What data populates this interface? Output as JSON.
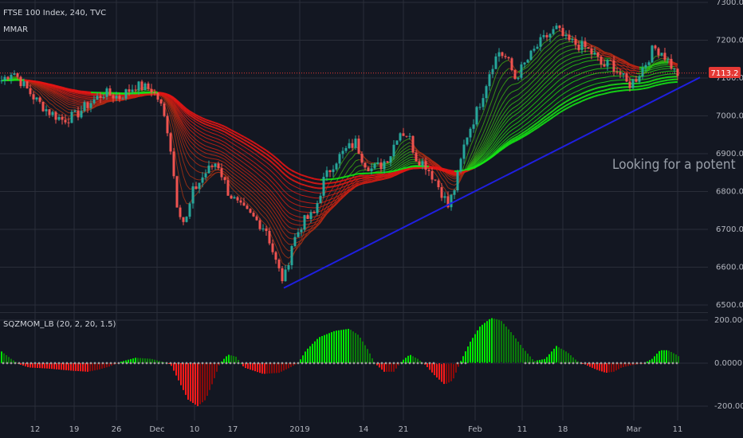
{
  "header": {
    "symbol": "FTSE 100 Index, 240, TVC",
    "indicator": "MMAR"
  },
  "annotation": {
    "text": "Looking for a potent"
  },
  "price_badge": {
    "text": "7113.2"
  },
  "osc_label": {
    "text": "SQZMOM_LB (20, 2, 20, 1.5)"
  },
  "colors": {
    "background": "#131722",
    "grid": "#2a2e39",
    "bull": "#26a69a",
    "bear": "#ef5350",
    "ribbon_red": "#e01818",
    "ribbon_green": "#18e018",
    "trendline": "#1f1fe0",
    "price_line": "#e53935",
    "squeeze_dot": "#9e9e9e"
  },
  "chart_data": [
    {
      "type": "candlestick",
      "title": "FTSE 100 Index, 240, TVC",
      "indicators": [
        "MMAR"
      ],
      "ylim": [
        6500,
        7300
      ],
      "y_ticks": [
        "7300.0",
        "7200.0",
        "7100.0",
        "7000.0",
        "6900.0",
        "6800.0",
        "6700.0",
        "6600.0",
        "6500.0"
      ],
      "x_ticks": [
        "12",
        "19",
        "26",
        "Dec",
        "10",
        "17",
        "2019",
        "14",
        "21",
        "Feb",
        "11",
        "18",
        "Mar",
        "11"
      ],
      "last_price": 7113.2,
      "close_path": [
        [
          0,
          7090
        ],
        [
          16,
          7120
        ],
        [
          30,
          7080
        ],
        [
          46,
          7040
        ],
        [
          62,
          7010
        ],
        [
          78,
          6990
        ],
        [
          94,
          7000
        ],
        [
          110,
          7030
        ],
        [
          130,
          7060
        ],
        [
          150,
          7050
        ],
        [
          170,
          7080
        ],
        [
          190,
          7070
        ],
        [
          200,
          7040
        ],
        [
          212,
          6950
        ],
        [
          222,
          6770
        ],
        [
          232,
          6710
        ],
        [
          242,
          6800
        ],
        [
          258,
          6850
        ],
        [
          272,
          6880
        ],
        [
          286,
          6800
        ],
        [
          300,
          6760
        ],
        [
          318,
          6730
        ],
        [
          334,
          6700
        ],
        [
          348,
          6600
        ],
        [
          356,
          6560
        ],
        [
          366,
          6660
        ],
        [
          380,
          6720
        ],
        [
          394,
          6740
        ],
        [
          406,
          6830
        ],
        [
          420,
          6880
        ],
        [
          434,
          6910
        ],
        [
          446,
          6930
        ],
        [
          456,
          6880
        ],
        [
          466,
          6860
        ],
        [
          478,
          6870
        ],
        [
          490,
          6900
        ],
        [
          500,
          6960
        ],
        [
          512,
          6950
        ],
        [
          522,
          6890
        ],
        [
          534,
          6870
        ],
        [
          546,
          6830
        ],
        [
          556,
          6790
        ],
        [
          562,
          6760
        ],
        [
          572,
          6820
        ],
        [
          584,
          6940
        ],
        [
          596,
          7000
        ],
        [
          606,
          7060
        ],
        [
          616,
          7130
        ],
        [
          626,
          7170
        ],
        [
          636,
          7150
        ],
        [
          646,
          7100
        ],
        [
          656,
          7130
        ],
        [
          666,
          7160
        ],
        [
          676,
          7190
        ],
        [
          686,
          7210
        ],
        [
          698,
          7230
        ],
        [
          710,
          7200
        ],
        [
          722,
          7190
        ],
        [
          734,
          7180
        ],
        [
          746,
          7160
        ],
        [
          756,
          7130
        ],
        [
          766,
          7140
        ],
        [
          778,
          7110
        ],
        [
          788,
          7080
        ],
        [
          798,
          7100
        ],
        [
          810,
          7140
        ],
        [
          820,
          7180
        ],
        [
          830,
          7170
        ],
        [
          840,
          7140
        ],
        [
          848,
          7110
        ],
        [
          852,
          7113
        ]
      ],
      "trendline": {
        "from": [
          "2019-01-01",
          6545
        ],
        "to": [
          "2019-03-12",
          7110
        ]
      },
      "ribbon": {
        "colors_from": "red",
        "colors_to": "green",
        "crossover": [
          "2019-01-03",
          6800
        ]
      }
    },
    {
      "type": "bar",
      "title": "SQZMOM_LB (20, 2, 20, 1.5)",
      "ylim": [
        -230,
        230
      ],
      "y_ticks": [
        "200.0000",
        "0.0000",
        "-200.0000"
      ],
      "momentum_path": [
        [
          0,
          60
        ],
        [
          14,
          20
        ],
        [
          24,
          -5
        ],
        [
          36,
          -20
        ],
        [
          60,
          -25
        ],
        [
          90,
          -35
        ],
        [
          110,
          -40
        ],
        [
          124,
          -30
        ],
        [
          138,
          -15
        ],
        [
          150,
          5
        ],
        [
          170,
          25
        ],
        [
          190,
          20
        ],
        [
          205,
          5
        ],
        [
          214,
          -5
        ],
        [
          224,
          -80
        ],
        [
          236,
          -170
        ],
        [
          248,
          -200
        ],
        [
          258,
          -170
        ],
        [
          268,
          -80
        ],
        [
          276,
          0
        ],
        [
          286,
          40
        ],
        [
          296,
          30
        ],
        [
          306,
          -20
        ],
        [
          330,
          -50
        ],
        [
          350,
          -45
        ],
        [
          364,
          -20
        ],
        [
          374,
          0
        ],
        [
          384,
          60
        ],
        [
          400,
          120
        ],
        [
          420,
          150
        ],
        [
          438,
          160
        ],
        [
          450,
          130
        ],
        [
          462,
          60
        ],
        [
          470,
          0
        ],
        [
          482,
          -40
        ],
        [
          494,
          -40
        ],
        [
          504,
          10
        ],
        [
          514,
          40
        ],
        [
          524,
          20
        ],
        [
          534,
          -10
        ],
        [
          546,
          -60
        ],
        [
          558,
          -100
        ],
        [
          568,
          -80
        ],
        [
          578,
          10
        ],
        [
          590,
          100
        ],
        [
          602,
          170
        ],
        [
          616,
          210
        ],
        [
          628,
          200
        ],
        [
          642,
          140
        ],
        [
          656,
          70
        ],
        [
          670,
          10
        ],
        [
          684,
          20
        ],
        [
          698,
          80
        ],
        [
          712,
          50
        ],
        [
          724,
          10
        ],
        [
          736,
          -10
        ],
        [
          748,
          -30
        ],
        [
          760,
          -45
        ],
        [
          770,
          -40
        ],
        [
          780,
          -20
        ],
        [
          792,
          -10
        ],
        [
          808,
          0
        ],
        [
          818,
          20
        ],
        [
          828,
          60
        ],
        [
          838,
          60
        ],
        [
          848,
          40
        ],
        [
          852,
          30
        ]
      ]
    }
  ]
}
